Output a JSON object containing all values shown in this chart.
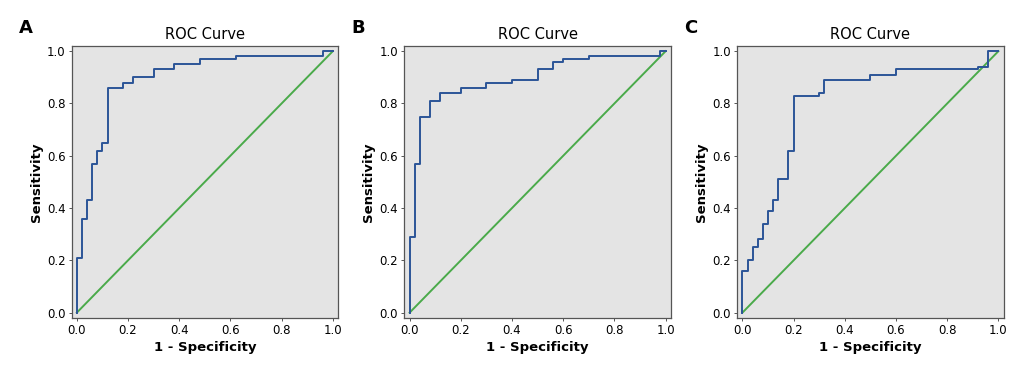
{
  "title": "ROC Curve",
  "xlabel": "1 - Specificity",
  "ylabel": "Sensitivity",
  "panel_labels": [
    "A",
    "B",
    "C"
  ],
  "roc_color": "#2b5597",
  "diag_color": "#4aaa4a",
  "bg_color": "#e4e4e4",
  "fig_bg_color": "#ffffff",
  "roc_A_x": [
    0.0,
    0.0,
    0.0,
    0.02,
    0.02,
    0.04,
    0.04,
    0.06,
    0.06,
    0.08,
    0.08,
    0.1,
    0.1,
    0.12,
    0.12,
    0.18,
    0.18,
    0.22,
    0.22,
    0.3,
    0.3,
    0.38,
    0.38,
    0.48,
    0.48,
    0.54,
    0.54,
    0.62,
    0.62,
    0.96,
    0.96,
    1.0
  ],
  "roc_A_y": [
    0.0,
    0.0,
    0.21,
    0.21,
    0.36,
    0.36,
    0.43,
    0.43,
    0.57,
    0.57,
    0.62,
    0.62,
    0.65,
    0.65,
    0.86,
    0.86,
    0.88,
    0.88,
    0.9,
    0.9,
    0.93,
    0.93,
    0.95,
    0.95,
    0.97,
    0.97,
    0.97,
    0.97,
    0.98,
    0.98,
    1.0,
    1.0
  ],
  "roc_B_x": [
    0.0,
    0.0,
    0.0,
    0.02,
    0.02,
    0.04,
    0.04,
    0.08,
    0.08,
    0.12,
    0.12,
    0.2,
    0.2,
    0.3,
    0.3,
    0.4,
    0.4,
    0.5,
    0.5,
    0.56,
    0.56,
    0.6,
    0.6,
    0.7,
    0.7,
    0.98,
    0.98,
    1.0
  ],
  "roc_B_y": [
    0.0,
    0.0,
    0.29,
    0.29,
    0.57,
    0.57,
    0.75,
    0.75,
    0.81,
    0.81,
    0.84,
    0.84,
    0.86,
    0.86,
    0.88,
    0.88,
    0.89,
    0.89,
    0.93,
    0.93,
    0.96,
    0.96,
    0.97,
    0.97,
    0.98,
    0.98,
    1.0,
    1.0
  ],
  "roc_C_x": [
    0.0,
    0.0,
    0.0,
    0.02,
    0.02,
    0.04,
    0.04,
    0.06,
    0.06,
    0.08,
    0.08,
    0.1,
    0.1,
    0.12,
    0.12,
    0.14,
    0.14,
    0.18,
    0.18,
    0.2,
    0.2,
    0.3,
    0.3,
    0.32,
    0.32,
    0.5,
    0.5,
    0.6,
    0.6,
    0.92,
    0.92,
    0.96,
    0.96,
    1.0
  ],
  "roc_C_y": [
    0.0,
    0.0,
    0.16,
    0.16,
    0.2,
    0.2,
    0.25,
    0.25,
    0.28,
    0.28,
    0.34,
    0.34,
    0.39,
    0.39,
    0.43,
    0.43,
    0.51,
    0.51,
    0.62,
    0.62,
    0.83,
    0.83,
    0.84,
    0.84,
    0.89,
    0.89,
    0.91,
    0.91,
    0.93,
    0.93,
    0.94,
    0.94,
    1.0,
    1.0
  ],
  "xlim": [
    -0.02,
    1.02
  ],
  "ylim": [
    -0.02,
    1.02
  ],
  "xticks": [
    0.0,
    0.2,
    0.4,
    0.6,
    0.8,
    1.0
  ],
  "yticks": [
    0.0,
    0.2,
    0.4,
    0.6,
    0.8,
    1.0
  ],
  "tick_label_fontsize": 8.5,
  "axis_label_fontsize": 9.5,
  "title_fontsize": 10.5,
  "panel_label_fontsize": 13,
  "line_width": 1.4,
  "spine_color": "#555555"
}
